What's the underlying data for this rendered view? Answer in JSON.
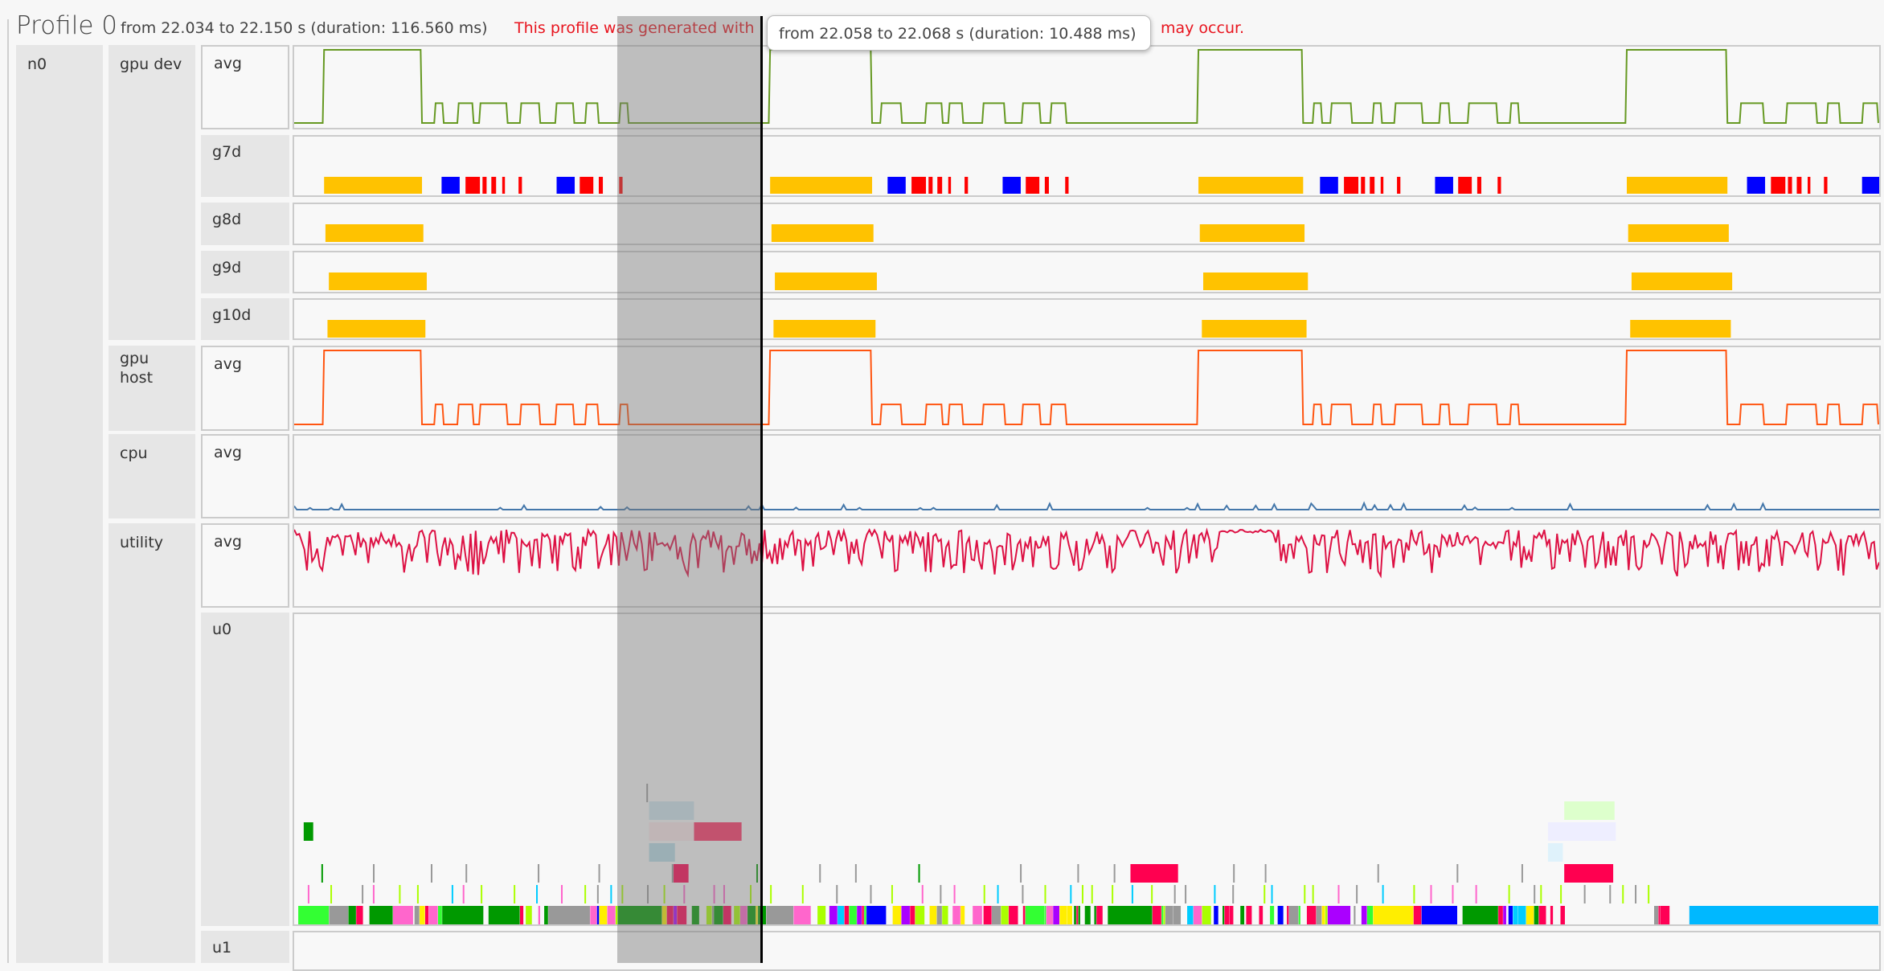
{
  "header": {
    "title": "Profile 0",
    "range": "from 22.034 to 22.150 s (duration: 116.560 ms)",
    "warning_visible_start": "This profile was generated with",
    "warning_visible_end": "may occur."
  },
  "tooltip": {
    "text": "from 22.058 to 22.068 s (duration: 10.488 ms)"
  },
  "time_range_ms": [
    0,
    116.56
  ],
  "selection_ms": [
    23.9,
    34.4
  ],
  "colors": {
    "gpu_dev": "#669922",
    "gpu_host": "#ff5511",
    "cpu": "#4477aa",
    "utility": "#dd1144",
    "busy_bar": "#ffc200",
    "marker_blue": "#0000ff",
    "marker_red": "#ff0000"
  },
  "tree": {
    "node": "n0",
    "groups": [
      {
        "label": "gpu dev",
        "rows": [
          "avg",
          "g7d",
          "g8d",
          "g9d",
          "g10d"
        ]
      },
      {
        "label": "gpu host",
        "rows": [
          "avg"
        ]
      },
      {
        "label": "cpu",
        "rows": [
          "avg"
        ]
      },
      {
        "label": "utility",
        "rows": [
          "avg",
          "u0",
          "u1"
        ]
      }
    ]
  },
  "chart_data": {
    "type": "timeline",
    "x_unit": "ms",
    "busy_intervals_ms": [
      [
        2.2,
        9.4
      ],
      [
        35.0,
        42.5
      ],
      [
        66.5,
        74.2
      ],
      [
        98.0,
        105.4
      ]
    ],
    "pulse_windows_ms": [
      [
        10.4,
        24.6
      ],
      [
        43.2,
        57.3
      ],
      [
        75.0,
        90.1
      ],
      [
        106.4,
        116.5
      ]
    ],
    "g7d_markers_rel_ms": [
      [
        0.44,
        1.33,
        "blue"
      ],
      [
        2.2,
        1.06,
        "red"
      ],
      [
        3.45,
        0.3,
        "red"
      ],
      [
        4.1,
        0.35,
        "red"
      ],
      [
        4.9,
        0.2,
        "red"
      ],
      [
        6.1,
        0.25,
        "red"
      ],
      [
        8.9,
        1.33,
        "blue"
      ],
      [
        10.6,
        1.0,
        "red"
      ],
      [
        12.0,
        0.3,
        "red"
      ],
      [
        13.5,
        0.25,
        "red"
      ]
    ],
    "u0_blocks_ms": [
      {
        "lane": 0,
        "start": 102.6,
        "end": 116.5,
        "color": "#00b8ff"
      },
      {
        "lane": 2,
        "start": 61.5,
        "end": 65.0,
        "color": "#ff0050"
      },
      {
        "lane": 2,
        "start": 93.4,
        "end": 97.0,
        "color": "#ff0050"
      },
      {
        "lane": 2,
        "start": 27.9,
        "end": 29.0,
        "color": "#ff0050"
      },
      {
        "lane": 3,
        "start": 26.1,
        "end": 28.0,
        "color": "#b8dce8"
      },
      {
        "lane": 3,
        "start": 92.2,
        "end": 93.3,
        "color": "#dff2fb"
      },
      {
        "lane": 4,
        "start": 29.4,
        "end": 32.9,
        "color": "#ff3366"
      },
      {
        "lane": 4,
        "start": 26.1,
        "end": 29.4,
        "color": "#fbe7ea"
      },
      {
        "lane": 4,
        "start": 92.2,
        "end": 97.2,
        "color": "#eeeeff"
      },
      {
        "lane": 4,
        "start": 0.7,
        "end": 1.4,
        "color": "#009900"
      },
      {
        "lane": 5,
        "start": 26.1,
        "end": 29.4,
        "color": "#cfe6ef"
      },
      {
        "lane": 5,
        "start": 93.4,
        "end": 97.1,
        "color": "#ddffcc"
      }
    ],
    "u0_bottom_lane_gaps_ms": [
      [
        93.4,
        97.2
      ],
      [
        101.0,
        102.6
      ]
    ]
  }
}
